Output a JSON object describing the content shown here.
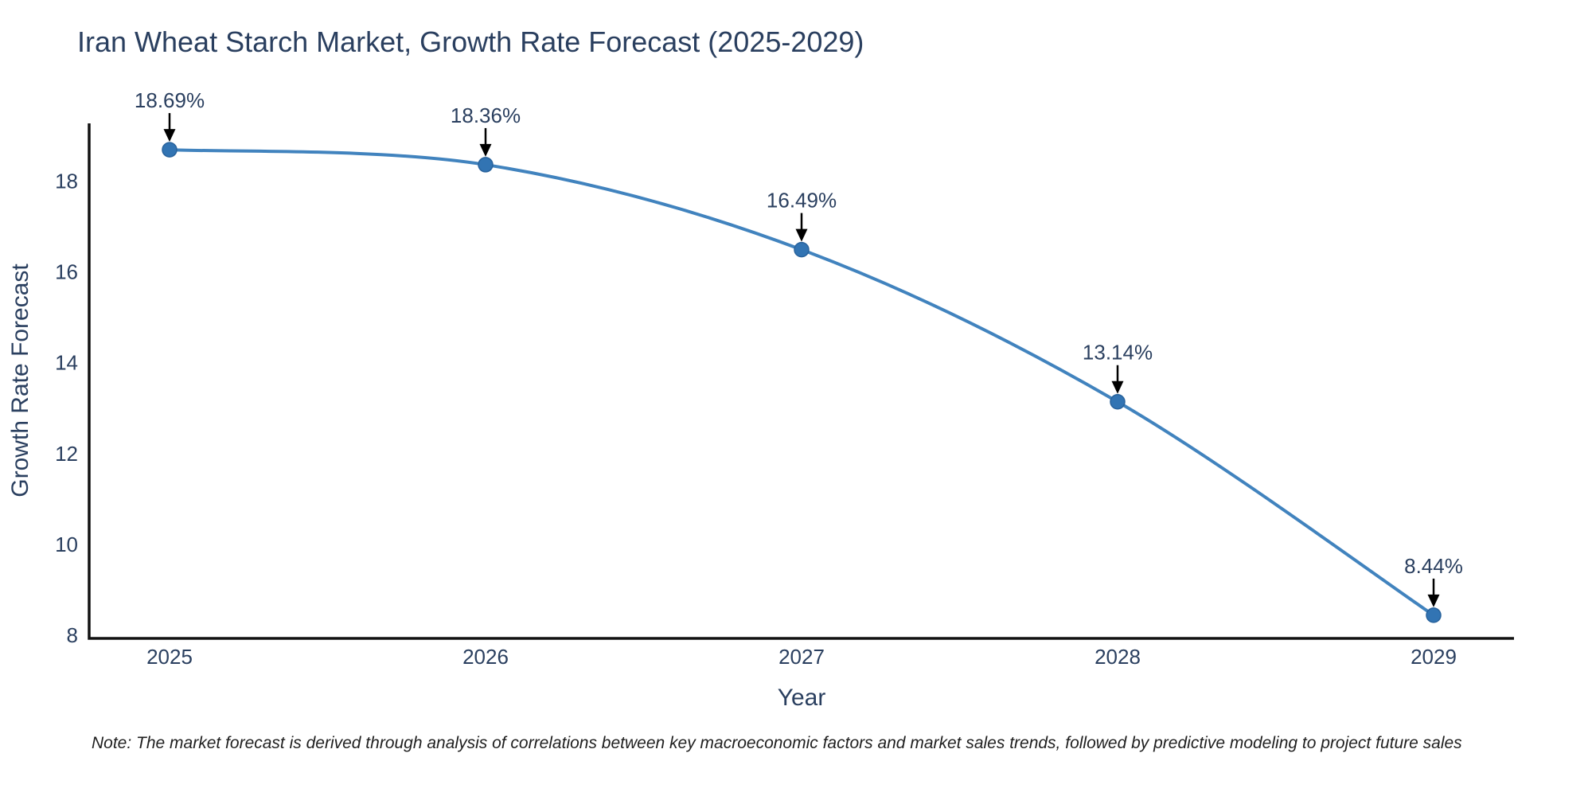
{
  "chart_data": {
    "type": "line",
    "title": "Iran Wheat Starch Market, Growth Rate Forecast (2025-2029)",
    "xlabel": "Year",
    "ylabel": "Growth Rate Forecast",
    "x": [
      2025,
      2026,
      2027,
      2028,
      2029
    ],
    "y": [
      18.69,
      18.36,
      16.49,
      13.14,
      8.44
    ],
    "point_labels": [
      "18.69%",
      "18.36%",
      "16.49%",
      "13.14%",
      "8.44%"
    ],
    "x_tick_labels": [
      "2025",
      "2026",
      "2027",
      "2028",
      "2029"
    ],
    "y_ticks": [
      8,
      10,
      12,
      14,
      16,
      18
    ],
    "y_tick_labels": [
      "8",
      "10",
      "12",
      "14",
      "16",
      "18"
    ],
    "ylim": [
      7.93,
      19.27
    ],
    "grid": false,
    "legend": "none",
    "line_shape": "spline",
    "annotation_style": "down-arrow",
    "colors": {
      "line": "#4183be",
      "marker": "#3274b3",
      "marker_edge": "#28629c",
      "axis_line": "#111111",
      "text": "#2a3f5f",
      "annotation_text": "#2a3f5f",
      "arrow": "#000000",
      "background": "#ffffff",
      "note_text": "#1f1f1f"
    }
  },
  "note": "Note: The market forecast is derived through analysis of correlations between key macroeconomic factors and market sales trends, followed by predictive modeling to project future sales"
}
